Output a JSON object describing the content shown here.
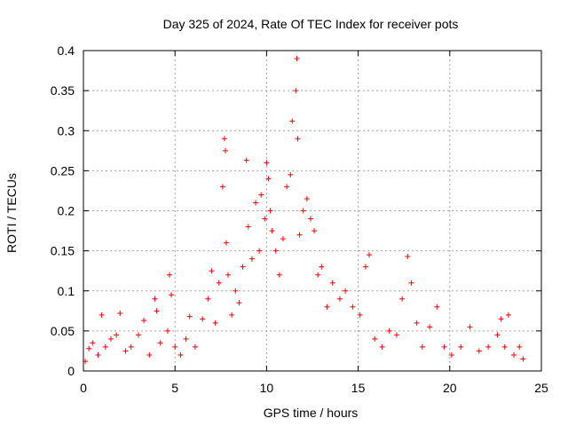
{
  "chart_data": {
    "type": "scatter",
    "title": "Day 325 of 2024, Rate Of TEC Index for receiver pots",
    "xlabel": "GPS time / hours",
    "ylabel": "ROTI / TECUs",
    "xlim": [
      0,
      25
    ],
    "ylim": [
      0,
      0.4
    ],
    "xticks": [
      0,
      5,
      10,
      15,
      20,
      25
    ],
    "yticks": [
      0,
      0.05,
      0.1,
      0.15,
      0.2,
      0.25,
      0.3,
      0.35,
      0.4
    ],
    "xtick_labels": [
      "0",
      "5",
      "10",
      "15",
      "20",
      "25"
    ],
    "ytick_labels": [
      "0",
      "0.05",
      "0.1",
      "0.15",
      "0.2",
      "0.25",
      "0.3",
      "0.35",
      "0.4"
    ],
    "grid": true,
    "marker": "+",
    "color": "#ff0000",
    "series": [
      {
        "name": "ROTI",
        "points": [
          [
            0.1,
            0.012
          ],
          [
            0.3,
            0.028
          ],
          [
            0.5,
            0.035
          ],
          [
            0.8,
            0.02
          ],
          [
            1.0,
            0.07
          ],
          [
            1.2,
            0.03
          ],
          [
            1.5,
            0.04
          ],
          [
            1.8,
            0.045
          ],
          [
            2.0,
            0.072
          ],
          [
            2.3,
            0.025
          ],
          [
            2.6,
            0.03
          ],
          [
            3.0,
            0.045
          ],
          [
            3.3,
            0.063
          ],
          [
            3.6,
            0.02
          ],
          [
            3.9,
            0.09
          ],
          [
            4.0,
            0.075
          ],
          [
            4.2,
            0.035
          ],
          [
            4.6,
            0.05
          ],
          [
            4.7,
            0.12
          ],
          [
            4.8,
            0.095
          ],
          [
            5.0,
            0.03
          ],
          [
            5.3,
            0.02
          ],
          [
            5.6,
            0.04
          ],
          [
            5.8,
            0.068
          ],
          [
            6.1,
            0.03
          ],
          [
            6.5,
            0.065
          ],
          [
            6.8,
            0.09
          ],
          [
            7.0,
            0.125
          ],
          [
            7.2,
            0.06
          ],
          [
            7.4,
            0.11
          ],
          [
            7.6,
            0.23
          ],
          [
            7.7,
            0.29
          ],
          [
            7.75,
            0.275
          ],
          [
            7.8,
            0.16
          ],
          [
            7.9,
            0.12
          ],
          [
            8.1,
            0.07
          ],
          [
            8.3,
            0.1
          ],
          [
            8.5,
            0.085
          ],
          [
            8.7,
            0.13
          ],
          [
            8.9,
            0.263
          ],
          [
            9.0,
            0.18
          ],
          [
            9.2,
            0.14
          ],
          [
            9.4,
            0.21
          ],
          [
            9.6,
            0.15
          ],
          [
            9.7,
            0.22
          ],
          [
            9.9,
            0.19
          ],
          [
            10.0,
            0.26
          ],
          [
            10.1,
            0.24
          ],
          [
            10.2,
            0.2
          ],
          [
            10.3,
            0.175
          ],
          [
            10.5,
            0.15
          ],
          [
            10.7,
            0.12
          ],
          [
            10.9,
            0.165
          ],
          [
            11.1,
            0.23
          ],
          [
            11.3,
            0.245
          ],
          [
            11.4,
            0.312
          ],
          [
            11.6,
            0.35
          ],
          [
            11.65,
            0.39
          ],
          [
            11.7,
            0.29
          ],
          [
            11.8,
            0.17
          ],
          [
            12.0,
            0.2
          ],
          [
            12.2,
            0.215
          ],
          [
            12.4,
            0.19
          ],
          [
            12.6,
            0.175
          ],
          [
            12.8,
            0.12
          ],
          [
            13.0,
            0.13
          ],
          [
            13.3,
            0.08
          ],
          [
            13.6,
            0.11
          ],
          [
            14.0,
            0.09
          ],
          [
            14.3,
            0.1
          ],
          [
            14.7,
            0.08
          ],
          [
            15.1,
            0.07
          ],
          [
            15.4,
            0.13
          ],
          [
            15.6,
            0.145
          ],
          [
            15.9,
            0.04
          ],
          [
            16.3,
            0.03
          ],
          [
            16.7,
            0.05
          ],
          [
            17.1,
            0.045
          ],
          [
            17.4,
            0.09
          ],
          [
            17.7,
            0.143
          ],
          [
            17.9,
            0.11
          ],
          [
            18.2,
            0.06
          ],
          [
            18.5,
            0.03
          ],
          [
            18.9,
            0.055
          ],
          [
            19.3,
            0.08
          ],
          [
            19.7,
            0.03
          ],
          [
            20.1,
            0.02
          ],
          [
            20.6,
            0.03
          ],
          [
            21.1,
            0.055
          ],
          [
            21.6,
            0.025
          ],
          [
            22.1,
            0.03
          ],
          [
            22.6,
            0.045
          ],
          [
            22.8,
            0.065
          ],
          [
            23.0,
            0.03
          ],
          [
            23.2,
            0.07
          ],
          [
            23.5,
            0.02
          ],
          [
            23.8,
            0.03
          ],
          [
            24.0,
            0.015
          ]
        ]
      }
    ]
  }
}
